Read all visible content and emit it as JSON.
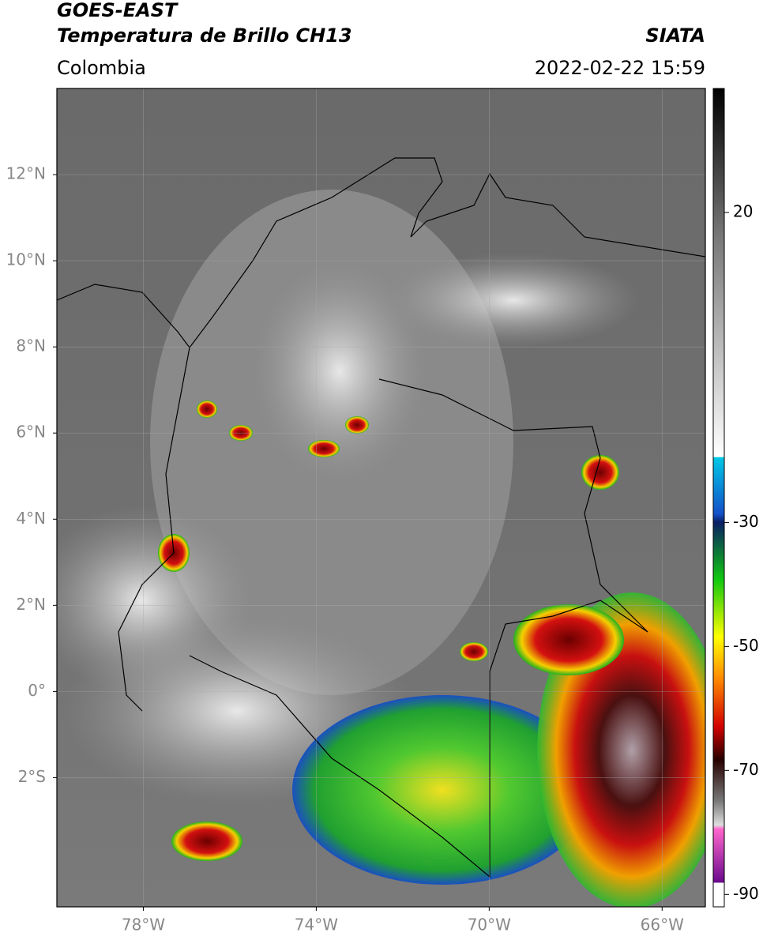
{
  "header": {
    "title": "GOES-EAST",
    "subtitle": "Temperatura de Brillo CH13",
    "region": "Colombia",
    "source": "SIATA",
    "datetime": "2022-02-22 15:59"
  },
  "map": {
    "lon_range": [
      -80,
      -65
    ],
    "lat_range": [
      -5,
      14
    ],
    "lat_ticks": [
      {
        "value": 12,
        "label": "12°N"
      },
      {
        "value": 10,
        "label": "10°N"
      },
      {
        "value": 8,
        "label": "8°N"
      },
      {
        "value": 6,
        "label": "6°N"
      },
      {
        "value": 4,
        "label": "4°N"
      },
      {
        "value": 2,
        "label": "2°N"
      },
      {
        "value": 0,
        "label": "0°"
      },
      {
        "value": -2,
        "label": "2°S"
      }
    ],
    "lon_ticks": [
      {
        "value": -78,
        "label": "78°W"
      },
      {
        "value": -74,
        "label": "74°W"
      },
      {
        "value": -70,
        "label": "70°W"
      },
      {
        "value": -66,
        "label": "66°W"
      }
    ],
    "grid": true
  },
  "colorbar": {
    "range": [
      -92,
      40
    ],
    "ticks": [
      20,
      -30,
      -50,
      -70,
      -90
    ]
  }
}
